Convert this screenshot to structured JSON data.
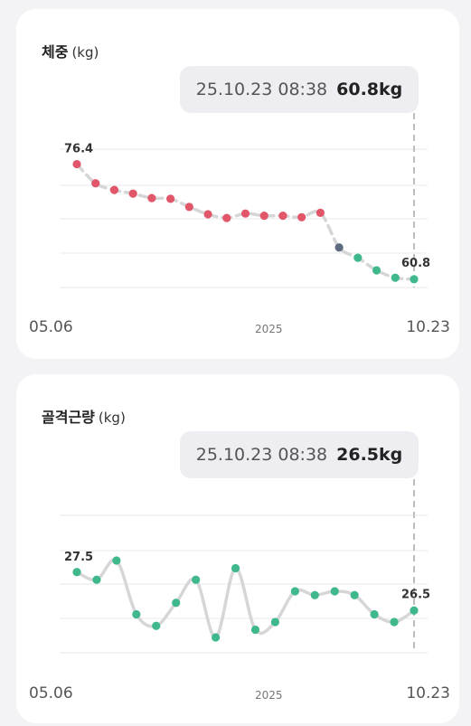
{
  "weight_card": {
    "title": "체중",
    "unit": "(kg)",
    "tooltip": {
      "date": "25.10.23 08:38",
      "value": "60.8kg"
    },
    "x_start": "05.06",
    "x_mid": "2025",
    "x_end": "10.23",
    "first_label": "76.4",
    "last_label": "60.8"
  },
  "bone_card": {
    "title": "골격근량",
    "unit": "(kg)",
    "tooltip": {
      "date": "25.10.23 08:38",
      "value": "26.5kg"
    },
    "x_start": "05.06",
    "x_mid": "2025",
    "x_end": "10.23",
    "first_label": "27.5",
    "last_label": "26.5"
  },
  "colors": {
    "red": "#e2566a",
    "green": "#3fb88c",
    "gray": "#5e6a7d",
    "line": "#d6d6d9",
    "grid": "#e9e9ec",
    "cursor": "#bdbdc1"
  },
  "chart_data": [
    {
      "type": "line",
      "title": "체중",
      "ylabel": "(kg)",
      "x_range": [
        "05.06",
        "10.23"
      ],
      "ylim": [
        59,
        78
      ],
      "series": [
        {
          "values": [
            76.4,
            73.8,
            72.9,
            72.4,
            71.8,
            71.7,
            70.6,
            69.6,
            69.1,
            69.7,
            69.4,
            69.4,
            69.2,
            69.8,
            65.1,
            63.7,
            62.0,
            61.0,
            60.8
          ],
          "colors": [
            "red",
            "red",
            "red",
            "red",
            "red",
            "red",
            "red",
            "red",
            "red",
            "red",
            "red",
            "red",
            "red",
            "red",
            "gray",
            "green",
            "green",
            "green",
            "green"
          ]
        }
      ]
    },
    {
      "type": "line",
      "title": "골격근량",
      "ylabel": "(kg)",
      "x_range": [
        "05.06",
        "10.23"
      ],
      "ylim": [
        25.0,
        29.0
      ],
      "series": [
        {
          "values": [
            27.5,
            27.3,
            27.8,
            26.4,
            26.1,
            26.7,
            27.3,
            25.8,
            27.6,
            26.0,
            26.2,
            27.0,
            26.9,
            27.0,
            26.9,
            26.4,
            26.2,
            26.5
          ],
          "colors": [
            "green",
            "green",
            "green",
            "green",
            "green",
            "green",
            "green",
            "green",
            "green",
            "green",
            "green",
            "green",
            "green",
            "green",
            "green",
            "green",
            "green",
            "green"
          ]
        }
      ]
    }
  ]
}
